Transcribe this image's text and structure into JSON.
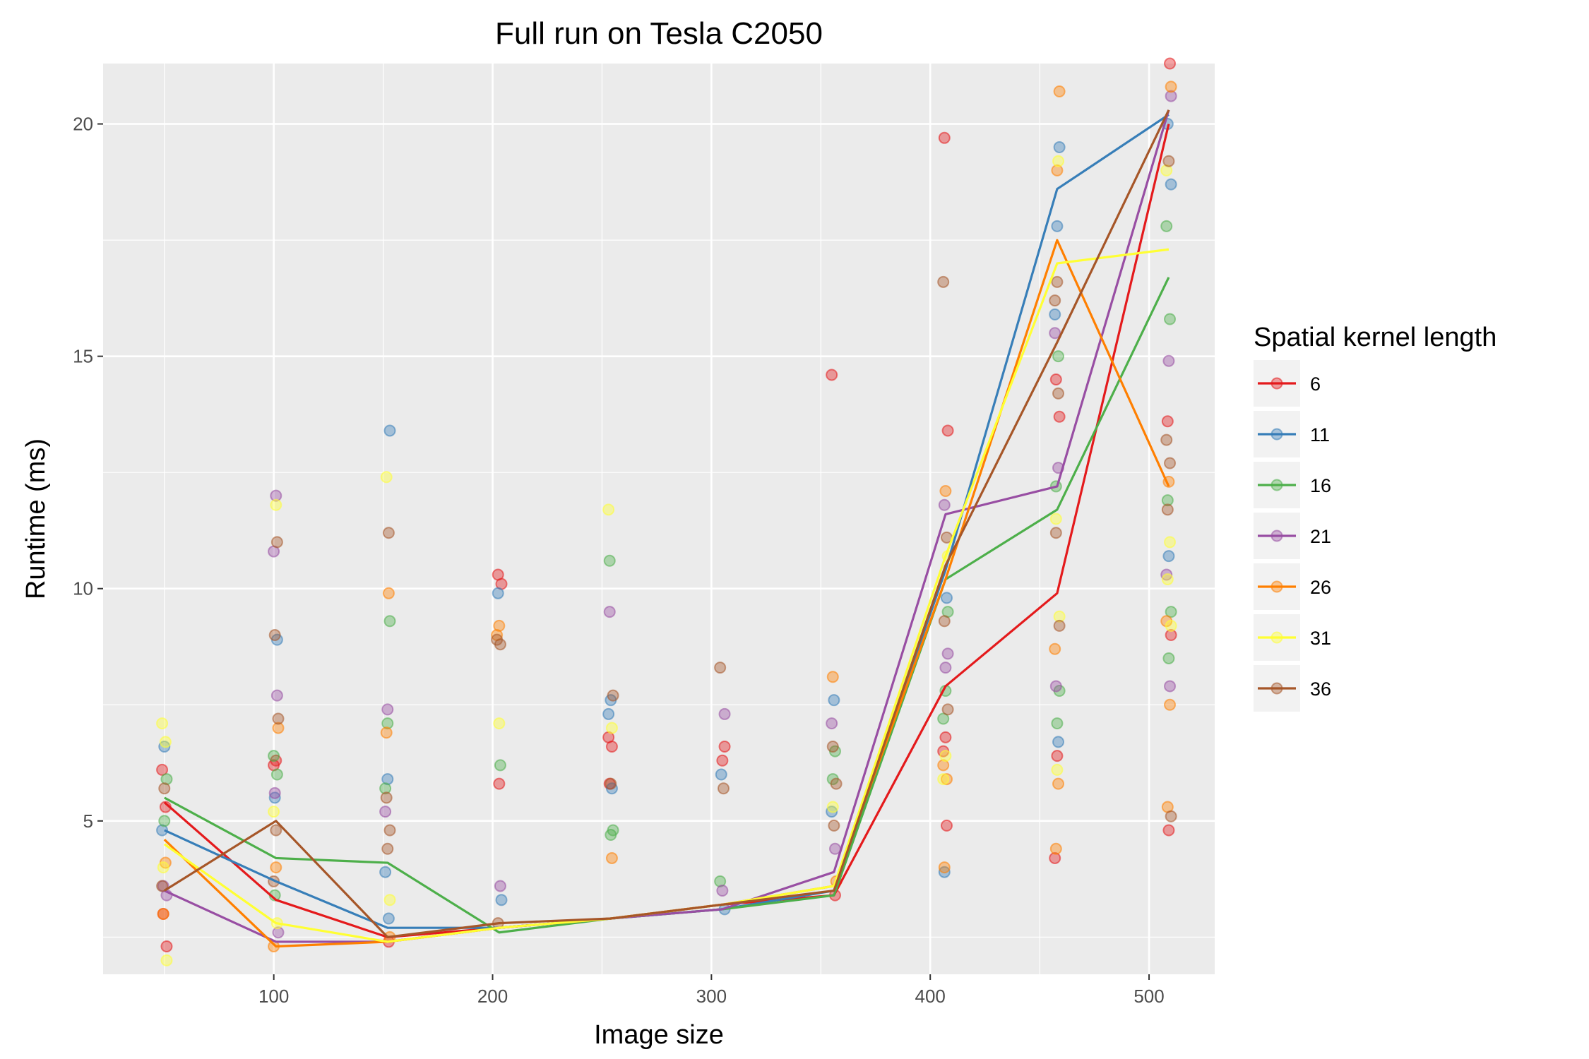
{
  "chart_data": {
    "type": "scatter",
    "title": "Full run on Tesla C2050",
    "xlabel": "Image size",
    "ylabel": "Runtime (ms)",
    "xlim": [
      22,
      530
    ],
    "ylim": [
      1.7,
      21.3
    ],
    "xticks": [
      100,
      200,
      300,
      400,
      500
    ],
    "yticks": [
      5,
      10,
      15,
      20
    ],
    "grid": true,
    "legend": {
      "title": "Spatial kernel length",
      "position": "right"
    },
    "x": [
      50,
      101,
      152,
      203,
      254,
      305,
      356,
      407,
      458,
      509
    ],
    "series": [
      {
        "name": "6",
        "color": "#E41A1C",
        "values": [
          5.4,
          3.3,
          2.5,
          2.7,
          2.9,
          3.2,
          3.4,
          7.9,
          9.9,
          20.0
        ],
        "points": [
          [
            50,
            6.1
          ],
          [
            50,
            5.3
          ],
          [
            50,
            3.0
          ],
          [
            50,
            2.3
          ],
          [
            101,
            6.3
          ],
          [
            101,
            6.2
          ],
          [
            152,
            2.4
          ],
          [
            203,
            10.3
          ],
          [
            203,
            10.1
          ],
          [
            203,
            5.8
          ],
          [
            254,
            6.8
          ],
          [
            254,
            6.6
          ],
          [
            254,
            5.8
          ],
          [
            305,
            6.6
          ],
          [
            305,
            6.3
          ],
          [
            356,
            14.6
          ],
          [
            356,
            3.4
          ],
          [
            407,
            19.7
          ],
          [
            407,
            13.4
          ],
          [
            407,
            6.8
          ],
          [
            407,
            6.5
          ],
          [
            407,
            4.9
          ],
          [
            458,
            14.5
          ],
          [
            458,
            13.7
          ],
          [
            458,
            6.4
          ],
          [
            458,
            4.2
          ],
          [
            509,
            21.3
          ],
          [
            509,
            13.6
          ],
          [
            509,
            9.0
          ],
          [
            509,
            4.8
          ]
        ]
      },
      {
        "name": "11",
        "color": "#377EB8",
        "values": [
          4.8,
          3.7,
          2.7,
          2.7,
          2.9,
          3.1,
          3.5,
          10.4,
          18.6,
          20.2
        ],
        "points": [
          [
            50,
            6.6
          ],
          [
            50,
            4.8
          ],
          [
            101,
            8.9
          ],
          [
            101,
            5.5
          ],
          [
            152,
            13.4
          ],
          [
            152,
            5.9
          ],
          [
            152,
            3.9
          ],
          [
            152,
            2.9
          ],
          [
            203,
            9.9
          ],
          [
            203,
            3.3
          ],
          [
            254,
            7.6
          ],
          [
            254,
            7.3
          ],
          [
            254,
            5.7
          ],
          [
            305,
            6.0
          ],
          [
            305,
            3.1
          ],
          [
            356,
            7.6
          ],
          [
            356,
            5.2
          ],
          [
            407,
            9.8
          ],
          [
            407,
            3.9
          ],
          [
            458,
            19.5
          ],
          [
            458,
            17.8
          ],
          [
            458,
            15.9
          ],
          [
            458,
            6.7
          ],
          [
            509,
            20.0
          ],
          [
            509,
            18.7
          ],
          [
            509,
            10.7
          ]
        ]
      },
      {
        "name": "16",
        "color": "#4DAF4A",
        "values": [
          5.5,
          4.2,
          4.1,
          2.6,
          2.9,
          3.1,
          3.4,
          10.2,
          11.7,
          16.7
        ],
        "points": [
          [
            50,
            5.9
          ],
          [
            50,
            5.0
          ],
          [
            101,
            6.4
          ],
          [
            101,
            6.0
          ],
          [
            101,
            3.4
          ],
          [
            152,
            9.3
          ],
          [
            152,
            7.1
          ],
          [
            152,
            5.7
          ],
          [
            203,
            6.2
          ],
          [
            254,
            10.6
          ],
          [
            254,
            4.8
          ],
          [
            254,
            4.7
          ],
          [
            305,
            3.7
          ],
          [
            356,
            6.5
          ],
          [
            356,
            5.9
          ],
          [
            407,
            9.5
          ],
          [
            407,
            7.8
          ],
          [
            407,
            7.2
          ],
          [
            458,
            15.0
          ],
          [
            458,
            12.2
          ],
          [
            458,
            7.8
          ],
          [
            458,
            7.1
          ],
          [
            509,
            17.8
          ],
          [
            509,
            15.8
          ],
          [
            509,
            11.9
          ],
          [
            509,
            9.5
          ],
          [
            509,
            8.5
          ]
        ]
      },
      {
        "name": "21",
        "color": "#984EA3",
        "values": [
          3.5,
          2.4,
          2.4,
          2.7,
          2.9,
          3.1,
          3.9,
          11.6,
          12.2,
          20.3
        ],
        "points": [
          [
            50,
            3.6
          ],
          [
            50,
            3.4
          ],
          [
            101,
            12.0
          ],
          [
            101,
            10.8
          ],
          [
            101,
            7.7
          ],
          [
            101,
            5.6
          ],
          [
            101,
            2.6
          ],
          [
            152,
            7.4
          ],
          [
            152,
            5.2
          ],
          [
            203,
            3.6
          ],
          [
            254,
            9.5
          ],
          [
            305,
            7.3
          ],
          [
            305,
            3.5
          ],
          [
            356,
            7.1
          ],
          [
            356,
            4.4
          ],
          [
            407,
            11.8
          ],
          [
            407,
            8.6
          ],
          [
            407,
            8.3
          ],
          [
            458,
            15.5
          ],
          [
            458,
            12.6
          ],
          [
            458,
            7.9
          ],
          [
            509,
            20.6
          ],
          [
            509,
            14.9
          ],
          [
            509,
            10.3
          ],
          [
            509,
            7.9
          ]
        ]
      },
      {
        "name": "26",
        "color": "#FF7F00",
        "values": [
          4.6,
          2.3,
          2.4,
          2.7,
          2.9,
          3.2,
          3.6,
          10.2,
          17.5,
          12.2
        ],
        "points": [
          [
            50,
            4.1
          ],
          [
            50,
            3.0
          ],
          [
            101,
            7.0
          ],
          [
            101,
            4.0
          ],
          [
            101,
            2.3
          ],
          [
            152,
            9.9
          ],
          [
            152,
            6.9
          ],
          [
            152,
            2.5
          ],
          [
            203,
            9.2
          ],
          [
            203,
            9.0
          ],
          [
            254,
            4.2
          ],
          [
            356,
            8.1
          ],
          [
            356,
            3.7
          ],
          [
            407,
            12.1
          ],
          [
            407,
            6.2
          ],
          [
            407,
            5.9
          ],
          [
            407,
            4.0
          ],
          [
            458,
            20.7
          ],
          [
            458,
            19.0
          ],
          [
            458,
            8.7
          ],
          [
            458,
            5.8
          ],
          [
            458,
            4.4
          ],
          [
            509,
            20.8
          ],
          [
            509,
            12.3
          ],
          [
            509,
            9.3
          ],
          [
            509,
            7.5
          ],
          [
            509,
            5.3
          ]
        ]
      },
      {
        "name": "31",
        "color": "#FFFF33",
        "values": [
          4.5,
          2.8,
          2.4,
          2.7,
          2.9,
          3.2,
          3.6,
          10.7,
          17.0,
          17.3
        ],
        "points": [
          [
            50,
            7.1
          ],
          [
            50,
            6.7
          ],
          [
            50,
            4.0
          ],
          [
            50,
            2.0
          ],
          [
            101,
            11.8
          ],
          [
            101,
            5.2
          ],
          [
            101,
            2.8
          ],
          [
            152,
            12.4
          ],
          [
            152,
            3.3
          ],
          [
            203,
            7.1
          ],
          [
            254,
            11.7
          ],
          [
            254,
            7.0
          ],
          [
            356,
            5.3
          ],
          [
            407,
            10.7
          ],
          [
            407,
            6.4
          ],
          [
            407,
            5.9
          ],
          [
            458,
            19.2
          ],
          [
            458,
            11.5
          ],
          [
            458,
            9.4
          ],
          [
            458,
            6.1
          ],
          [
            509,
            19.0
          ],
          [
            509,
            11.0
          ],
          [
            509,
            10.2
          ],
          [
            509,
            9.2
          ]
        ]
      },
      {
        "name": "36",
        "color": "#A65628",
        "values": [
          3.5,
          5.0,
          2.5,
          2.8,
          2.9,
          3.2,
          3.5,
          10.5,
          15.3,
          20.3
        ],
        "points": [
          [
            50,
            5.7
          ],
          [
            50,
            3.6
          ],
          [
            101,
            11.0
          ],
          [
            101,
            9.0
          ],
          [
            101,
            7.2
          ],
          [
            101,
            4.8
          ],
          [
            101,
            3.7
          ],
          [
            152,
            11.2
          ],
          [
            152,
            5.5
          ],
          [
            152,
            4.8
          ],
          [
            152,
            4.4
          ],
          [
            203,
            8.9
          ],
          [
            203,
            8.8
          ],
          [
            203,
            2.8
          ],
          [
            254,
            7.7
          ],
          [
            254,
            5.8
          ],
          [
            305,
            8.3
          ],
          [
            305,
            5.7
          ],
          [
            356,
            6.6
          ],
          [
            356,
            5.8
          ],
          [
            356,
            4.9
          ],
          [
            407,
            16.6
          ],
          [
            407,
            11.1
          ],
          [
            407,
            9.3
          ],
          [
            407,
            7.4
          ],
          [
            458,
            16.6
          ],
          [
            458,
            16.2
          ],
          [
            458,
            14.2
          ],
          [
            458,
            11.2
          ],
          [
            458,
            9.2
          ],
          [
            509,
            19.2
          ],
          [
            509,
            13.2
          ],
          [
            509,
            12.7
          ],
          [
            509,
            11.7
          ],
          [
            509,
            5.1
          ]
        ]
      }
    ]
  }
}
